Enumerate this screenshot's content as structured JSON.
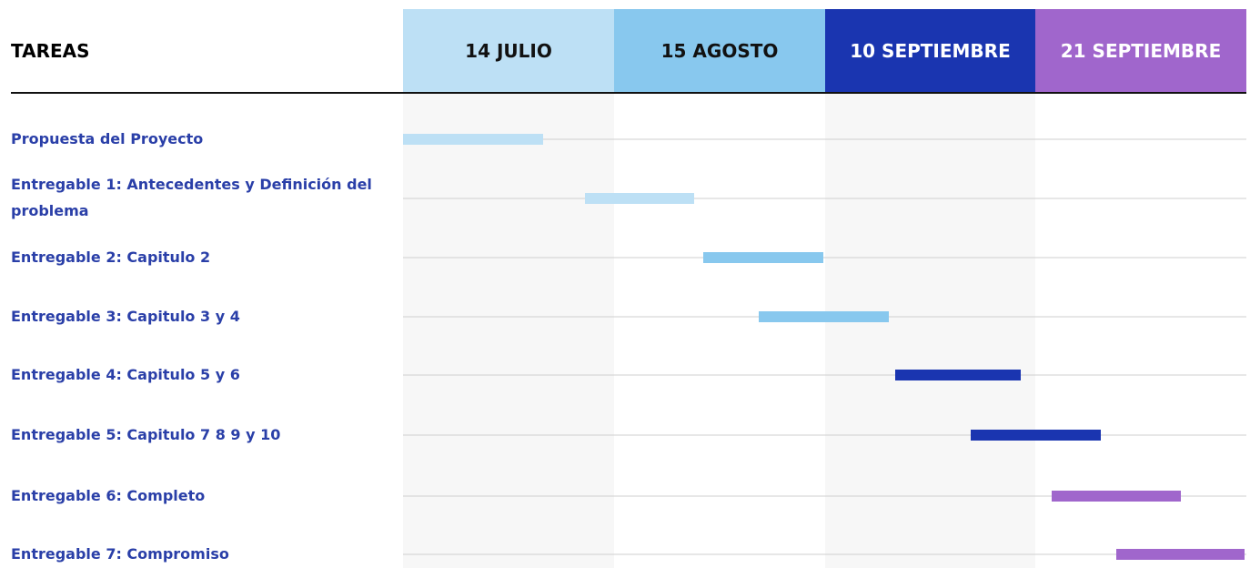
{
  "header": {
    "title": "TAREAS",
    "columns": [
      "14 JULIO",
      "15 AGOSTO",
      "10 SEPTIEMBRE",
      "21 SEPTIEMBRE"
    ]
  },
  "tasks": [
    "Propuesta del Proyecto",
    "Entregable 1: Antecedentes y Definición del problema",
    "Entregable 2: Capitulo 2",
    "Entregable 3: Capitulo 3 y 4",
    "Entregable 4: Capitulo 5 y 6",
    "Entregable 5: Capitulo 7 8 9 y 10",
    "Entregable 6: Completo",
    "Entregable 7: Compromiso"
  ]
}
